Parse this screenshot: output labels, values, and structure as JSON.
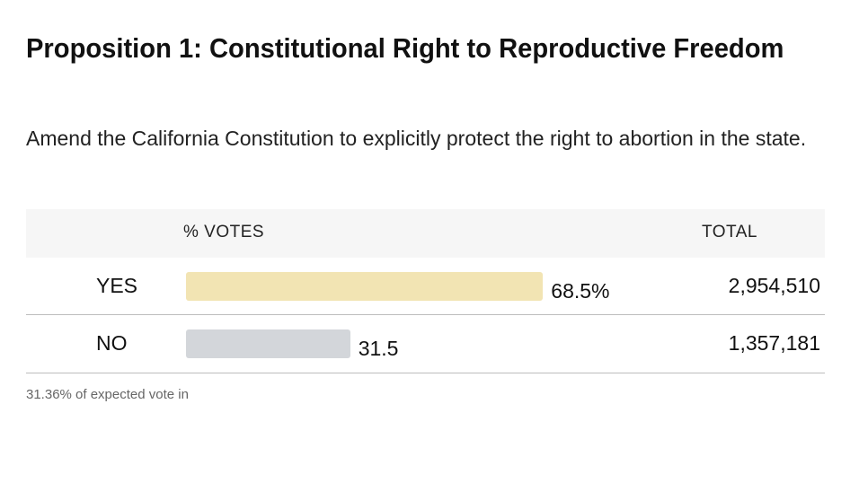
{
  "title": "Proposition 1: Constitutional Right to Reproductive Freedom",
  "subtitle": "Amend the California Constitution to explicitly protect the right to abortion in the state.",
  "table": {
    "header_votes": "% VOTES",
    "header_total": "TOTAL"
  },
  "footnote": "31.36% of expected vote in",
  "colors": {
    "yes_bar": "#f2e4b3",
    "no_bar": "#d3d6da",
    "header_bg": "#f6f6f6",
    "divider": "#bdbdbd"
  },
  "chart_data": {
    "type": "bar",
    "title": "Proposition 1: Constitutional Right to Reproductive Freedom",
    "categories": [
      "YES",
      "NO"
    ],
    "values": [
      68.5,
      31.5
    ],
    "value_labels": [
      "68.5%",
      "31.5"
    ],
    "totals": [
      "2,954,510",
      "1,357,181"
    ],
    "xlim": [
      0,
      100
    ],
    "xlabel": "% VOTES",
    "ylabel": ""
  }
}
